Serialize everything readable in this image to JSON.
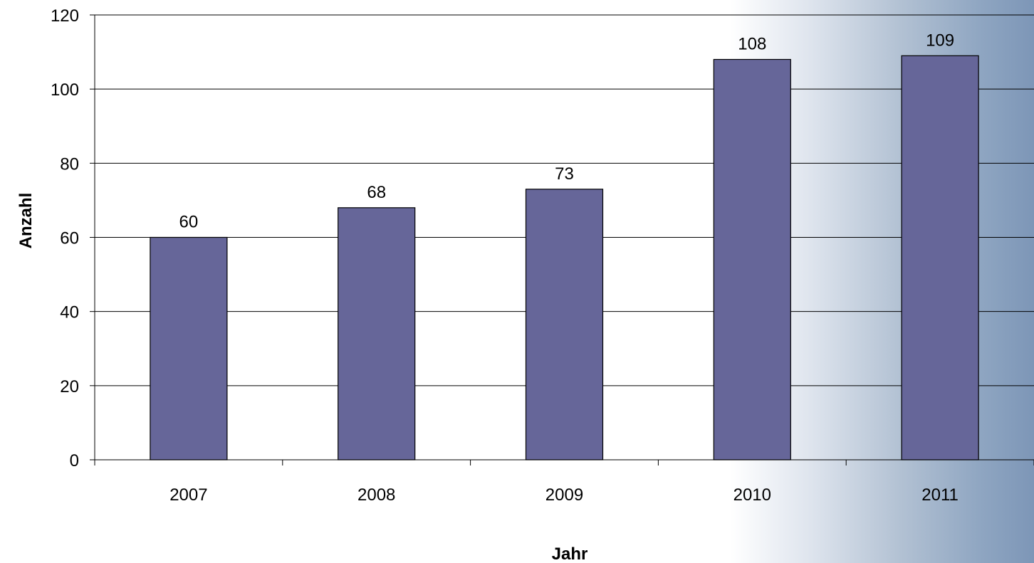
{
  "chart_data": {
    "type": "bar",
    "categories": [
      "2007",
      "2008",
      "2009",
      "2010",
      "2011"
    ],
    "values": [
      60,
      68,
      73,
      108,
      109
    ],
    "data_labels": [
      "60",
      "68",
      "73",
      "108",
      "109"
    ],
    "xlabel": "Jahr",
    "ylabel": "Anzahl",
    "ylim": [
      0,
      120
    ],
    "yticks": [
      0,
      20,
      40,
      60,
      80,
      100,
      120
    ],
    "ytick_labels": [
      "0",
      "20",
      "40",
      "60",
      "80",
      "100",
      "120"
    ],
    "grid": true,
    "legend": "none",
    "colors": {
      "bar_fill": "#666699",
      "bar_stroke": "#000000",
      "gridline": "#000000",
      "background_gradient_end": "#7d96b7"
    }
  }
}
